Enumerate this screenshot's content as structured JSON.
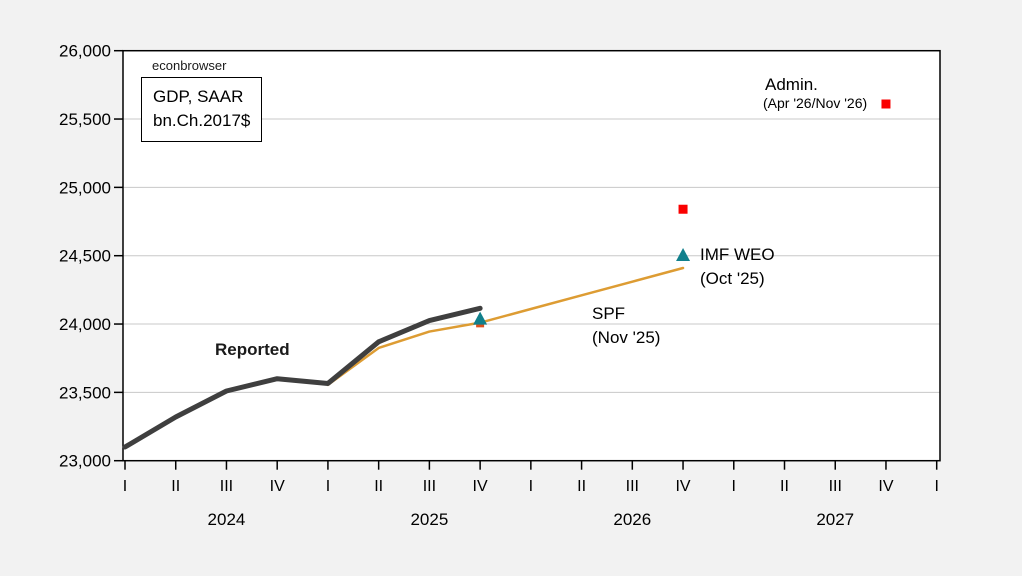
{
  "watermark": "econbrowser",
  "colors": {
    "page_bg": "#f2f2f2",
    "plot_bg": "#ffffff",
    "grid": "#c8c8c8",
    "axis": "#000000",
    "reported": "#3f3f3f",
    "spf": "#dd9c33",
    "spf_marker": "#e0501c",
    "imf_weo": "#11808c",
    "admin": "#fa0000"
  },
  "chart_data": {
    "type": "line",
    "title_box": {
      "line1": "GDP, SAAR",
      "line2": "bn.Ch.2017$"
    },
    "y_axis": {
      "min": 23000,
      "max": 26000,
      "step": 500,
      "tick_labels": [
        "23,000",
        "23,500",
        "24,000",
        "24,500",
        "25,000",
        "25,500",
        "26,000"
      ],
      "grid": true
    },
    "x_axis": {
      "quarter_labels": [
        "I",
        "II",
        "III",
        "IV",
        "I",
        "II",
        "III",
        "IV",
        "I",
        "II",
        "III",
        "IV",
        "I",
        "II",
        "III",
        "IV",
        "I"
      ],
      "year_labels": [
        {
          "label": "2024",
          "quarter_index": 2
        },
        {
          "label": "2025",
          "quarter_index": 6
        },
        {
          "label": "2026",
          "quarter_index": 10
        },
        {
          "label": "2027",
          "quarter_index": 14
        }
      ]
    },
    "series": [
      {
        "name": "SPF (Nov '25)",
        "color_key": "spf",
        "stroke_width": 2.5,
        "start_quarter_index": 4,
        "quarters": [
          "2025Q1",
          "2025Q2",
          "2025Q3",
          "2025Q4",
          "2026Q1",
          "2026Q2",
          "2026Q3",
          "2026Q4"
        ],
        "values": [
          23555,
          23825,
          23945,
          24010,
          24110,
          24210,
          24310,
          24410
        ]
      },
      {
        "name": "Reported",
        "color_key": "reported",
        "stroke_width": 5,
        "start_quarter_index": 0,
        "quarters": [
          "2024Q1",
          "2024Q2",
          "2024Q3",
          "2024Q4",
          "2025Q1",
          "2025Q2",
          "2025Q3",
          "2025Q4"
        ],
        "values": [
          23100,
          23320,
          23510,
          23600,
          23565,
          23870,
          24025,
          24115
        ]
      }
    ],
    "point_markers": [
      {
        "name": "SPF (Nov '25) point",
        "shape": "square",
        "size": 8,
        "color_key": "spf_marker",
        "points": [
          {
            "quarter": "2025Q4",
            "quarter_index": 7,
            "value": 24005
          }
        ]
      },
      {
        "name": "IMF WEO (Oct '25)",
        "shape": "triangle",
        "size": 14,
        "color_key": "imf_weo",
        "points": [
          {
            "quarter": "2025Q4",
            "quarter_index": 7,
            "value": 24040
          },
          {
            "quarter": "2026Q4",
            "quarter_index": 11,
            "value": 24505
          }
        ]
      },
      {
        "name": "Admin. (Apr '26/Nov '26)",
        "shape": "square",
        "size": 9,
        "color_key": "admin",
        "points": [
          {
            "quarter": "2026Q4",
            "quarter_index": 11,
            "value": 24840
          },
          {
            "quarter": "2027Q4",
            "quarter_index": 15,
            "value": 25610
          }
        ]
      }
    ],
    "annotations": {
      "reported": "Reported",
      "spf_line1": "SPF",
      "spf_line2": "(Nov '25)",
      "imf_line1": "IMF WEO",
      "imf_line2": "(Oct '25)",
      "admin_line1": "Admin.",
      "admin_line2": "(Apr '26/Nov '26)"
    }
  }
}
